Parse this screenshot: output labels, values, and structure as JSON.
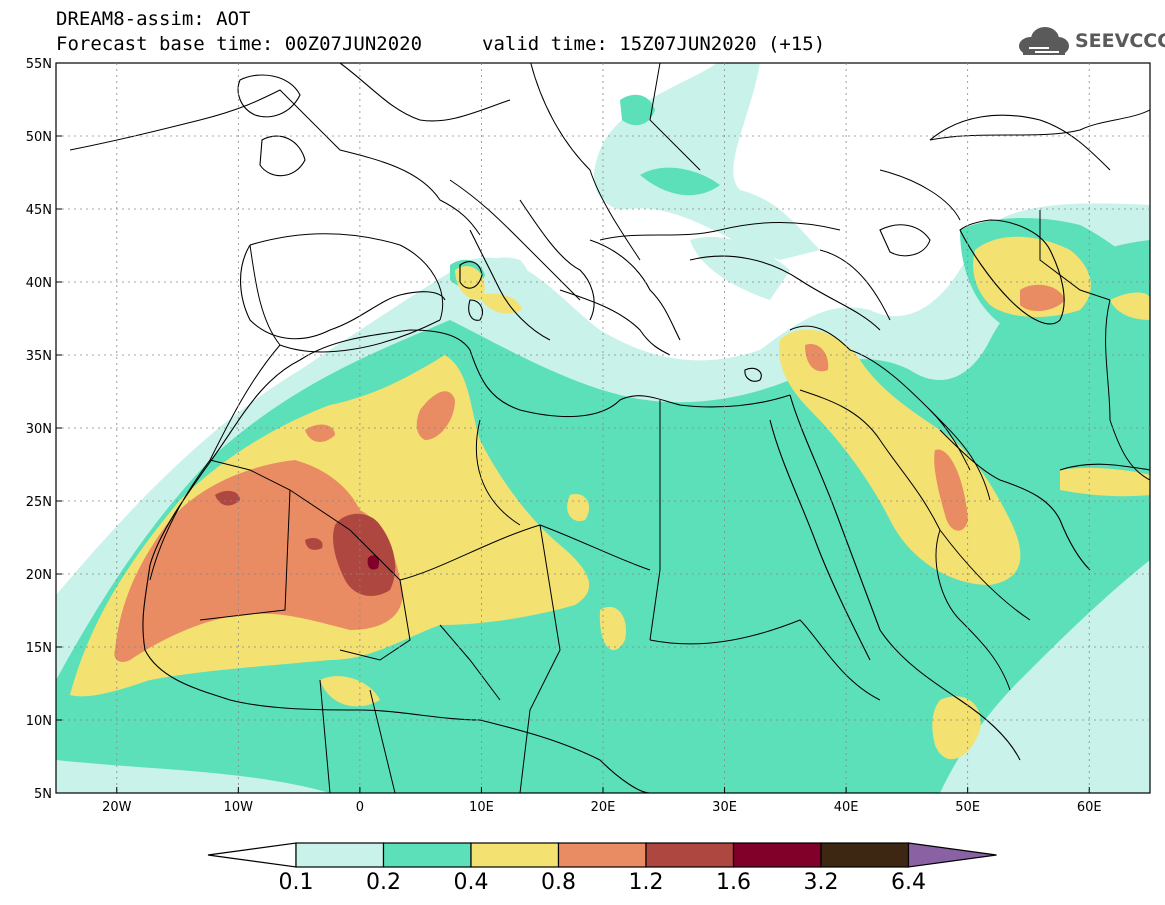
{
  "title": {
    "line1": "DREAM8-assim: AOT",
    "line2": "Forecast base time: 00Z07JUN2020",
    "valid": "valid time: 15Z07JUN2020 (+15)"
  },
  "logo": {
    "text": "SEEVCCC",
    "icon": "cloud-icon"
  },
  "axes": {
    "lat_ticks": [
      "55N",
      "50N",
      "45N",
      "40N",
      "35N",
      "30N",
      "25N",
      "20N",
      "15N",
      "10N",
      "5N"
    ],
    "lon_ticks": [
      "20W",
      "10W",
      "0",
      "10E",
      "20E",
      "30E",
      "40E",
      "50E",
      "60E"
    ]
  },
  "colorbar": {
    "labels": [
      "0.1",
      "0.2",
      "0.4",
      "0.8",
      "1.2",
      "1.6",
      "3.2",
      "6.4"
    ],
    "colors": [
      "#c9f2ea",
      "#5ce0b9",
      "#f3e271",
      "#e98c63",
      "#ae4740",
      "#80002a",
      "#3e2712",
      "#8a62a4"
    ],
    "under_color": "#ffffff"
  },
  "map_colors": {
    "background": "#ffffff",
    "border": "#000000"
  }
}
